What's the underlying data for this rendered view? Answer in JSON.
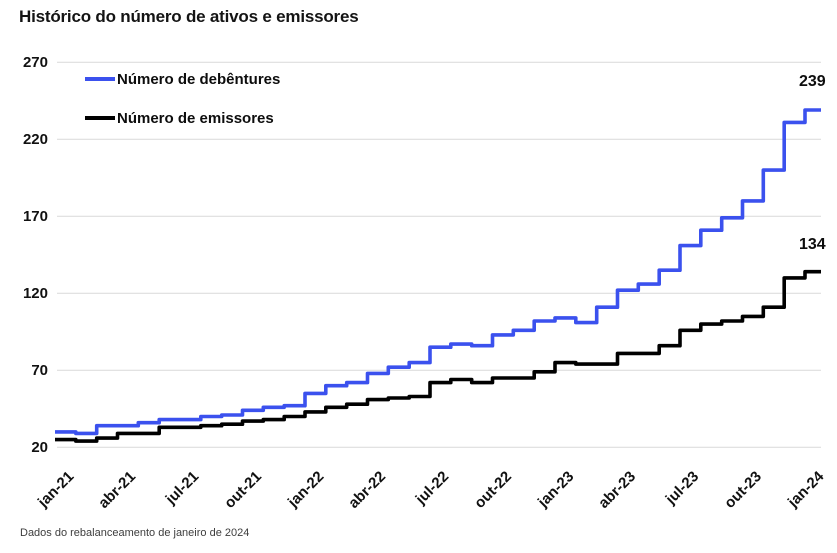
{
  "header": {
    "title": "Histórico do número de ativos e emissores"
  },
  "footer": {
    "source": "Dados do rebalanceamento de janeiro de 2024"
  },
  "annotations": {
    "debentures_end_value": "239",
    "emissores_end_value": "134"
  },
  "colors": {
    "debentures_line": "#3b51ee",
    "emissores_line": "#000000",
    "gridline": "#d9d9d9",
    "text": "#111111"
  },
  "chart_data": {
    "type": "line",
    "step": true,
    "title": "Histórico do número de ativos e emissores",
    "xlabel": "",
    "ylabel": "",
    "ylim": [
      20,
      270
    ],
    "y_ticks": [
      20,
      70,
      120,
      170,
      220,
      270
    ],
    "grid": "horizontal-only",
    "legend_position": "top-left-inside",
    "x_tick_labels": [
      "jan-21",
      "abr-21",
      "jul-21",
      "out-21",
      "jan-22",
      "abr-22",
      "jul-22",
      "out-22",
      "jan-23",
      "abr-23",
      "jul-23",
      "out-23",
      "jan-24"
    ],
    "months": [
      "jan-21",
      "fev-21",
      "mar-21",
      "abr-21",
      "mai-21",
      "jun-21",
      "jul-21",
      "ago-21",
      "set-21",
      "out-21",
      "nov-21",
      "dez-21",
      "jan-22",
      "fev-22",
      "mar-22",
      "abr-22",
      "mai-22",
      "jun-22",
      "jul-22",
      "ago-22",
      "set-22",
      "out-22",
      "nov-22",
      "dez-22",
      "jan-23",
      "fev-23",
      "mar-23",
      "abr-23",
      "mai-23",
      "jun-23",
      "jul-23",
      "ago-23",
      "set-23",
      "out-23",
      "nov-23",
      "dez-23",
      "jan-24"
    ],
    "series": [
      {
        "name": "Número de debêntures",
        "color": "#3b51ee",
        "end_label": 239,
        "values": [
          30,
          29,
          34,
          34,
          36,
          38,
          38,
          40,
          41,
          44,
          46,
          47,
          55,
          60,
          62,
          68,
          72,
          75,
          85,
          87,
          86,
          93,
          96,
          102,
          104,
          101,
          111,
          122,
          126,
          135,
          151,
          161,
          169,
          180,
          200,
          231,
          239
        ]
      },
      {
        "name": "Número de emissores",
        "color": "#000000",
        "end_label": 134,
        "values": [
          25,
          24,
          26,
          29,
          29,
          33,
          33,
          34,
          35,
          37,
          38,
          40,
          43,
          46,
          48,
          51,
          52,
          53,
          62,
          64,
          62,
          65,
          65,
          69,
          75,
          74,
          74,
          81,
          81,
          86,
          96,
          100,
          102,
          105,
          111,
          130,
          134
        ]
      }
    ]
  }
}
